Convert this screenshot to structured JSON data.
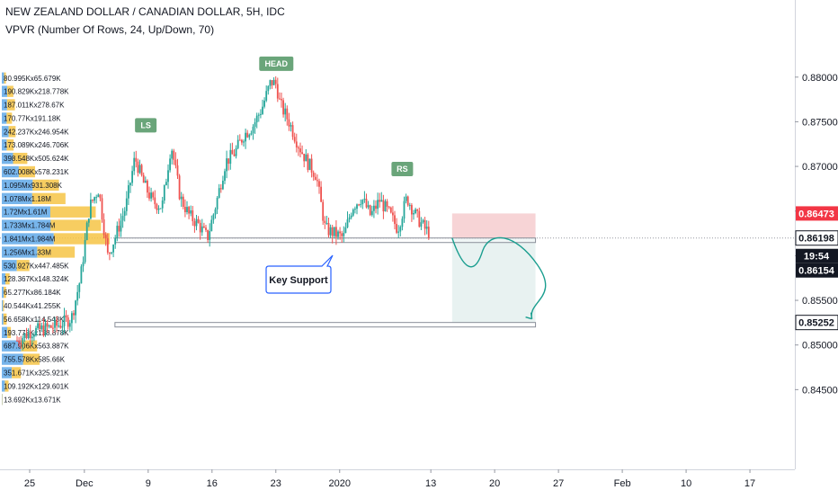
{
  "header": {
    "title": "NEW ZEALAND DOLLAR / CANADIAN DOLLAR, 5H, IDC",
    "indicator": "VPVR (Number Of Rows, 24, Up/Down, 70)"
  },
  "colors": {
    "up": "#26a69a",
    "down": "#ef5350",
    "vp_up": "#5fa8e8",
    "vp_down": "#f6c445",
    "label_green": "#6aa57a",
    "stop_zone": "#f7d4d6",
    "target_zone": "#e8f2f1",
    "arrow": "#1a9e8f",
    "tag_red": "#f23645",
    "tag_dark": "#131722"
  },
  "chart_data": {
    "type": "candlestick",
    "title": "NEW ZEALAND DOLLAR / CANADIAN DOLLAR, 5H, IDC",
    "x_ticks": [
      "25",
      "Dec",
      "9",
      "16",
      "23",
      "2020",
      "13",
      "20",
      "27",
      "Feb",
      "10",
      "17"
    ],
    "y_ticks": [
      "0.88000",
      "0.87500",
      "0.87000",
      "0.86500",
      "0.86000",
      "0.85500",
      "0.85000",
      "0.84500"
    ],
    "ylim": [
      0.8398,
      0.8834
    ],
    "x_range_days": [
      0,
      56
    ],
    "close_path": [
      [
        0,
        0.8505
      ],
      [
        1.5,
        0.8515
      ],
      [
        3,
        0.8518
      ],
      [
        4.5,
        0.8522
      ],
      [
        6,
        0.853
      ],
      [
        7,
        0.8575
      ],
      [
        8,
        0.8655
      ],
      [
        9,
        0.8675
      ],
      [
        10,
        0.86
      ],
      [
        10.8,
        0.862
      ],
      [
        12,
        0.8655
      ],
      [
        13,
        0.871
      ],
      [
        14,
        0.868
      ],
      [
        15,
        0.866
      ],
      [
        16,
        0.8655
      ],
      [
        17,
        0.8725
      ],
      [
        18,
        0.8665
      ],
      [
        19,
        0.8645
      ],
      [
        20,
        0.8635
      ],
      [
        21,
        0.862
      ],
      [
        22,
        0.866
      ],
      [
        23,
        0.8705
      ],
      [
        24,
        0.8715
      ],
      [
        25,
        0.8735
      ],
      [
        26,
        0.8745
      ],
      [
        27,
        0.8765
      ],
      [
        28,
        0.8795
      ],
      [
        28.6,
        0.8792
      ],
      [
        29,
        0.877
      ],
      [
        30,
        0.875
      ],
      [
        31,
        0.8725
      ],
      [
        32,
        0.8705
      ],
      [
        33,
        0.869
      ],
      [
        34,
        0.863
      ],
      [
        35,
        0.8625
      ],
      [
        36,
        0.862
      ],
      [
        37,
        0.8655
      ],
      [
        38,
        0.8665
      ],
      [
        39,
        0.8645
      ],
      [
        40,
        0.8662
      ],
      [
        41,
        0.8648
      ],
      [
        42,
        0.863
      ],
      [
        43,
        0.8665
      ],
      [
        44,
        0.8645
      ],
      [
        45,
        0.863
      ],
      [
        45.6,
        0.8625
      ]
    ],
    "volume_profile": [
      {
        "label": "80.995Kx65.679K",
        "price": 0.8799,
        "up": 81.0,
        "down": 65.7
      },
      {
        "label": "190.829Kx218.778K",
        "price": 0.8784,
        "up": 190.8,
        "down": 218.8
      },
      {
        "label": "187.011Kx278.67K",
        "price": 0.8769,
        "up": 187.0,
        "down": 278.7
      },
      {
        "label": "170.77Kx191.18K",
        "price": 0.8754,
        "up": 170.8,
        "down": 191.2
      },
      {
        "label": "242.237Kx246.954K",
        "price": 0.8739,
        "up": 242.2,
        "down": 247.0
      },
      {
        "label": "173.089Kx246.706K",
        "price": 0.8724,
        "up": 173.1,
        "down": 246.7
      },
      {
        "label": "398.548Kx505.624K",
        "price": 0.8709,
        "up": 398.5,
        "down": 505.6
      },
      {
        "label": "602.008Kx578.231K",
        "price": 0.8694,
        "up": 602.0,
        "down": 578.2
      },
      {
        "label": "1.095Mx931.308K",
        "price": 0.8679,
        "up": 1095.0,
        "down": 931.3
      },
      {
        "label": "1.078Mx1.18M",
        "price": 0.8664,
        "up": 1078.0,
        "down": 1180.0
      },
      {
        "label": "1.72Mx1.61M",
        "price": 0.8649,
        "up": 1720.0,
        "down": 1610.0
      },
      {
        "label": "1.733Mx1.784M",
        "price": 0.8634,
        "up": 1733.0,
        "down": 1784.0
      },
      {
        "label": "1.841Mx1.984M",
        "price": 0.8619,
        "up": 1841.0,
        "down": 1984.0
      },
      {
        "label": "1.256Mx1.33M",
        "price": 0.8604,
        "up": 1256.0,
        "down": 1330.0
      },
      {
        "label": "530.927Kx447.485K",
        "price": 0.8589,
        "up": 530.9,
        "down": 447.5
      },
      {
        "label": "128.367Kx148.324K",
        "price": 0.8574,
        "up": 128.4,
        "down": 148.3
      },
      {
        "label": "65.277Kx86.184K",
        "price": 0.8559,
        "up": 65.3,
        "down": 86.2
      },
      {
        "label": "40.544Kx41.255K",
        "price": 0.8544,
        "up": 40.5,
        "down": 41.3
      },
      {
        "label": "56.658Kx114.543K",
        "price": 0.8529,
        "up": 56.7,
        "down": 114.5
      },
      {
        "label": "193.778Kx128.878K",
        "price": 0.8514,
        "up": 193.8,
        "down": 128.9
      },
      {
        "label": "687.906Kx563.887K",
        "price": 0.8499,
        "up": 687.9,
        "down": 563.9
      },
      {
        "label": "755.578Kx585.66K",
        "price": 0.8484,
        "up": 755.6,
        "down": 585.7
      },
      {
        "label": "351.671Kx325.921K",
        "price": 0.8469,
        "up": 351.7,
        "down": 325.9
      },
      {
        "label": "109.192Kx129.601K",
        "price": 0.8454,
        "up": 109.2,
        "down": 129.6
      },
      {
        "label": "13.692Kx13.671K",
        "price": 0.8439,
        "up": 13.7,
        "down": 13.7
      }
    ],
    "annotations": {
      "head": {
        "text": "HEAD",
        "day": 28.6,
        "price": 0.8815
      },
      "ls": {
        "text": "LS",
        "day": 14.2,
        "price": 0.8746
      },
      "rs": {
        "text": "RS",
        "day": 42.5,
        "price": 0.8697
      },
      "key_support": {
        "text": "Key Support"
      },
      "support_zone": {
        "from_day": 10.8,
        "to_day": 57.2,
        "low": 0.86149,
        "high": 0.86198
      },
      "target_zone": {
        "from_day": 10.8,
        "to_day": 57.2,
        "low": 0.85202,
        "high": 0.85252
      },
      "stop_box": {
        "from_day": 48,
        "to_day": 57.2,
        "low": 0.86198,
        "high": 0.86473
      },
      "target_box": {
        "from_day": 48,
        "to_day": 57.2,
        "low": 0.85252,
        "high": 0.86198
      }
    },
    "price_tags": [
      {
        "label": "0.86473",
        "price": 0.86473,
        "style": "red"
      },
      {
        "label": "0.86198",
        "price": 0.86198,
        "style": "outline"
      },
      {
        "label": "19:54",
        "price": 0.8604,
        "style": "dark"
      },
      {
        "label": "0.86154",
        "price": 0.86154,
        "style": "dark"
      },
      {
        "label": "0.85252",
        "price": 0.85252,
        "style": "outline"
      }
    ]
  }
}
